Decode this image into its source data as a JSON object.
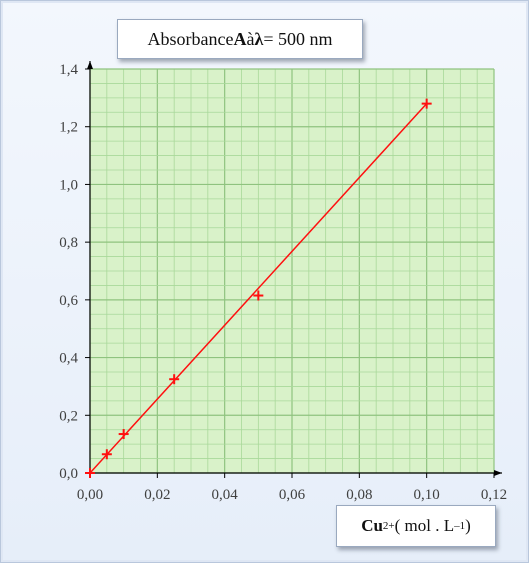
{
  "chart_data": {
    "type": "scatter",
    "title": {
      "prefix": "Absorbance ",
      "var": "A",
      "mid": " à ",
      "lambda": "λ",
      "suffix": " = 500 nm"
    },
    "xlabel": {
      "species": "Cu",
      "charge": "2+",
      "unit_open": " ( mol . L",
      "unit_exp": "–1",
      "unit_close": ")"
    },
    "ylabel": "",
    "xlim": [
      0,
      0.12
    ],
    "ylim": [
      0,
      1.4
    ],
    "x_ticks": [
      "0,00",
      "0,02",
      "0,04",
      "0,06",
      "0,08",
      "0,10",
      "0,12"
    ],
    "y_ticks": [
      "0,0",
      "0,2",
      "0,4",
      "0,6",
      "0,8",
      "1,0",
      "1,2",
      "1,4"
    ],
    "grid": true,
    "series": [
      {
        "marker": "+",
        "points": [
          {
            "x": 0.0,
            "y": 0.0
          },
          {
            "x": 0.005,
            "y": 0.065
          },
          {
            "x": 0.01,
            "y": 0.135
          },
          {
            "x": 0.025,
            "y": 0.325
          },
          {
            "x": 0.05,
            "y": 0.615
          },
          {
            "x": 0.1,
            "y": 1.28
          }
        ]
      }
    ],
    "fit_line": {
      "x": [
        0.0,
        0.1
      ],
      "y": [
        0.0,
        1.28
      ]
    }
  },
  "colors": {
    "plot_bg": "#d9f2c9",
    "grid_minor": "#a9d89a",
    "grid_major": "#8fc37f",
    "axis": "#000000",
    "data": "#ff1010"
  }
}
